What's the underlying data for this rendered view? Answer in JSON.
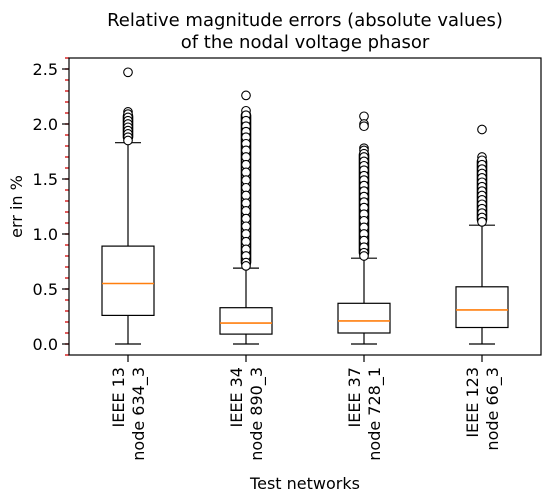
{
  "chart_data": {
    "type": "box",
    "title": "Relative magnitude errors (absolute values)\nof the nodal voltage phasor",
    "title_lines": [
      "Relative magnitude errors (absolute values)",
      "of the nodal voltage phasor"
    ],
    "xlabel": "Test networks",
    "ylabel": "err in %",
    "ylim": [
      -0.1,
      2.6
    ],
    "yticks": [
      "0.0",
      "0.5",
      "1.0",
      "1.5",
      "2.0",
      "2.5"
    ],
    "ytick_values": [
      0.0,
      0.5,
      1.0,
      1.5,
      2.0,
      2.5
    ],
    "minor_tick_step": 0.1,
    "grid": false,
    "colors": {
      "box": "#000000",
      "median": "#ff7f0e",
      "minor_ticks": "#d62728",
      "background": "#ffffff"
    },
    "categories": [
      {
        "line1": "IEEE 13",
        "line2": "node 634_3",
        "q1": 0.26,
        "median": 0.55,
        "q3": 0.89,
        "whisker_low": 0.0,
        "whisker_high": 1.83,
        "outlier_band": [
          1.84,
          2.11
        ],
        "outliers": [
          2.47,
          2.11,
          2.09,
          2.06,
          2.03,
          2.0,
          1.97,
          1.94,
          1.91,
          1.88,
          1.85
        ]
      },
      {
        "line1": "IEEE 34",
        "line2": "node 890_3",
        "q1": 0.09,
        "median": 0.19,
        "q3": 0.33,
        "whisker_low": 0.0,
        "whisker_high": 0.69,
        "outlier_band": [
          0.7,
          2.12
        ],
        "outliers": [
          2.26,
          2.12,
          2.08,
          2.03,
          1.98,
          1.93,
          1.88,
          1.82,
          1.76,
          1.7,
          1.63,
          1.56,
          1.49,
          1.42,
          1.35,
          1.28,
          1.21,
          1.14,
          1.07,
          1.0,
          0.93,
          0.86,
          0.8,
          0.74,
          0.71
        ]
      },
      {
        "line1": "IEEE 37",
        "line2": "node 728_1",
        "q1": 0.1,
        "median": 0.21,
        "q3": 0.37,
        "whisker_low": 0.0,
        "whisker_high": 0.78,
        "outlier_band": [
          0.79,
          1.76
        ],
        "outliers": [
          2.07,
          2.0,
          1.98,
          1.78,
          1.76,
          1.73,
          1.7,
          1.66,
          1.62,
          1.58,
          1.53,
          1.49,
          1.44,
          1.39,
          1.34,
          1.29,
          1.24,
          1.18,
          1.12,
          1.06,
          1.0,
          0.94,
          0.88,
          0.83,
          0.8
        ]
      },
      {
        "line1": "IEEE 123",
        "line2": "node 66_3",
        "q1": 0.15,
        "median": 0.31,
        "q3": 0.52,
        "whisker_low": 0.0,
        "whisker_high": 1.08,
        "outlier_band": [
          1.09,
          1.7
        ],
        "outliers": [
          1.95,
          1.7,
          1.67,
          1.63,
          1.59,
          1.55,
          1.51,
          1.47,
          1.43,
          1.39,
          1.35,
          1.31,
          1.27,
          1.23,
          1.19,
          1.15,
          1.11
        ]
      }
    ]
  }
}
